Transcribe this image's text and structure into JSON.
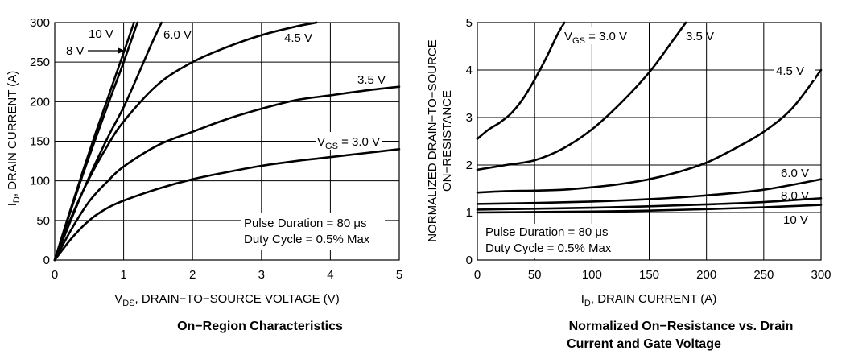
{
  "chart_data": [
    {
      "type": "line",
      "title": "On−Region Characteristics",
      "xlabel": "DRAIN−TO−SOURCE VOLTAGE (V)",
      "xlabel_prefix": "V",
      "xlabel_sub": "DS",
      "xlabel_rest": ", DRAIN−TO−SOURCE VOLTAGE (V)",
      "ylabel_prefix": "I",
      "ylabel_sub": "D",
      "ylabel_rest": ", DRAIN CURRENT (A)",
      "xlim": [
        0,
        5
      ],
      "ylim": [
        0,
        300
      ],
      "xticks": [
        "0",
        "1",
        "2",
        "3",
        "4",
        "5"
      ],
      "yticks": [
        "0",
        "50",
        "100",
        "150",
        "200",
        "250",
        "300"
      ],
      "notes": [
        "Pulse Duration = 80 μs",
        "Duty Cycle = 0.5% Max"
      ],
      "series": [
        {
          "name": "10 V",
          "label": "10 V",
          "x": [
            0,
            0.2,
            0.4,
            0.6,
            0.8,
            1.0,
            1.15
          ],
          "y": [
            0,
            56,
            110,
            162,
            212,
            262,
            300
          ]
        },
        {
          "name": "8 V",
          "label": "8 V",
          "x": [
            0,
            0.2,
            0.4,
            0.6,
            0.8,
            1.0,
            1.2
          ],
          "y": [
            0,
            54,
            106,
            155,
            203,
            250,
            300
          ]
        },
        {
          "name": "6.0 V",
          "label": "6.0 V",
          "x": [
            0,
            0.2,
            0.4,
            0.6,
            0.8,
            1.0,
            1.2,
            1.4,
            1.55
          ],
          "y": [
            0,
            43,
            85,
            124,
            160,
            193,
            232,
            272,
            300
          ]
        },
        {
          "name": "4.5 V",
          "label": "4.5 V",
          "x": [
            0,
            0.25,
            0.5,
            0.75,
            1.0,
            1.5,
            2.0,
            2.5,
            3.0,
            3.5,
            3.8
          ],
          "y": [
            0,
            56,
            103,
            142,
            175,
            222,
            250,
            269,
            284,
            295,
            300
          ]
        },
        {
          "name": "3.5 V",
          "label": "3.5 V",
          "x": [
            0,
            0.25,
            0.5,
            0.75,
            1.0,
            1.5,
            2.0,
            2.5,
            3.0,
            3.5,
            4.0,
            4.5,
            5.0
          ],
          "y": [
            0,
            40,
            74,
            98,
            118,
            145,
            162,
            178,
            191,
            202,
            208,
            214,
            219
          ]
        },
        {
          "name": "3.0 V",
          "label_prefix": "V",
          "label_sub": "GS",
          "label_rest": " = 3.0 V",
          "x": [
            0,
            0.25,
            0.5,
            0.75,
            1.0,
            1.5,
            2.0,
            2.5,
            3.0,
            3.5,
            4.0,
            4.5,
            5.0
          ],
          "y": [
            0,
            28,
            50,
            65,
            75,
            90,
            102,
            111,
            119,
            125,
            130,
            135,
            140
          ]
        }
      ],
      "annotation": {
        "text": "8 V",
        "arrow_to_x": 1.0
      }
    },
    {
      "type": "line",
      "title_lines": [
        "Normalized On−Resistance vs. Drain",
        "Current and Gate Voltage"
      ],
      "xlabel_prefix": "I",
      "xlabel_sub": "D",
      "xlabel_rest": ", DRAIN CURRENT (A)",
      "ylabel_lines": [
        "NORMALIZED DRAIN−TO−SOURCE",
        "ON−RESISTANCE"
      ],
      "xlim": [
        0,
        300
      ],
      "ylim": [
        0,
        5
      ],
      "xticks": [
        "0",
        "50",
        "100",
        "150",
        "200",
        "250",
        "300"
      ],
      "yticks": [
        "0",
        "1",
        "2",
        "3",
        "4",
        "5"
      ],
      "notes": [
        "Pulse Duration = 80 μs",
        "Duty Cycle = 0.5% Max"
      ],
      "series": [
        {
          "name": "3.0 V",
          "label_prefix": "V",
          "label_sub": "GS",
          "label_rest": " = 3.0 V",
          "x": [
            0,
            10,
            20,
            30,
            40,
            50,
            60,
            70,
            76
          ],
          "y": [
            2.55,
            2.75,
            2.9,
            3.1,
            3.4,
            3.8,
            4.25,
            4.75,
            5.0
          ]
        },
        {
          "name": "3.5 V",
          "label": "3.5 V",
          "x": [
            0,
            25,
            50,
            75,
            100,
            125,
            150,
            170,
            182
          ],
          "y": [
            1.9,
            2.0,
            2.1,
            2.35,
            2.75,
            3.3,
            3.95,
            4.6,
            5.0
          ]
        },
        {
          "name": "4.5 V",
          "label": "4.5 V",
          "x": [
            0,
            25,
            50,
            75,
            100,
            125,
            150,
            175,
            200,
            225,
            250,
            275,
            300
          ],
          "y": [
            1.42,
            1.45,
            1.46,
            1.48,
            1.53,
            1.6,
            1.7,
            1.85,
            2.05,
            2.35,
            2.7,
            3.2,
            4.0
          ]
        },
        {
          "name": "6.0 V",
          "label": "6.0 V",
          "x": [
            0,
            50,
            100,
            150,
            200,
            250,
            300
          ],
          "y": [
            1.18,
            1.2,
            1.23,
            1.28,
            1.36,
            1.48,
            1.7
          ]
        },
        {
          "name": "8.0 V",
          "label": "8.0 V",
          "x": [
            0,
            50,
            100,
            150,
            200,
            250,
            300
          ],
          "y": [
            1.06,
            1.08,
            1.1,
            1.13,
            1.17,
            1.22,
            1.3
          ]
        },
        {
          "name": "10 V",
          "label": "10 V",
          "x": [
            0,
            50,
            100,
            150,
            200,
            250,
            300
          ],
          "y": [
            1.0,
            1.01,
            1.02,
            1.04,
            1.07,
            1.11,
            1.16
          ]
        }
      ]
    }
  ]
}
